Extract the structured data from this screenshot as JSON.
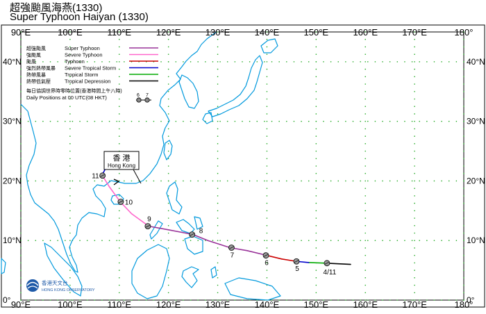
{
  "title": {
    "zh": "超強颱風海燕(1330)",
    "en": "Super Typhoon Haiyan  (1330)"
  },
  "axes": {
    "lon_labels": [
      "90°E",
      "100°E",
      "110°E",
      "120°E",
      "130°E",
      "140°E",
      "150°E",
      "160°E",
      "170°E",
      "180°"
    ],
    "lat_labels": [
      "0°",
      "10°N",
      "20°N",
      "30°N",
      "40°N"
    ]
  },
  "legend": {
    "items": [
      {
        "zh": "超強颱風",
        "en": "Super Typhoon",
        "color": "#993399"
      },
      {
        "zh": "強颱風",
        "en": "Severe Typhoon",
        "color": "#ff66cc"
      },
      {
        "zh": "颱風",
        "en": "Typhoon",
        "color": "#cc0000"
      },
      {
        "zh": "強烈熱帶風暴",
        "en": "Severe Tropical Storm",
        "color": "#0000cc"
      },
      {
        "zh": "熱帶風暴",
        "en": "Tropical Storm",
        "color": "#00aa00"
      },
      {
        "zh": "熱帶低氣壓",
        "en": "Tropical Depression",
        "color": "#000000"
      }
    ],
    "daily_zh": "每日協調世界時零時位置(香港時間上午八時)",
    "daily_en": "Daily Positions at 00 UTC(08 HKT)",
    "sample_labels": [
      "6",
      "7"
    ]
  },
  "hong_kong": {
    "zh": "香 港",
    "en": "Hong Kong"
  },
  "track": [
    {
      "lon": 157.0,
      "lat": 6.0,
      "color": "#000000"
    },
    {
      "lon": 152.0,
      "lat": 6.2,
      "color": "#00aa00"
    },
    {
      "lon": 148.5,
      "lat": 6.3,
      "color": "#0000cc"
    },
    {
      "lon": 146.0,
      "lat": 6.5,
      "color": "#cc0000"
    },
    {
      "lon": 143.0,
      "lat": 6.9,
      "color": "#cc0000"
    },
    {
      "lon": 140.0,
      "lat": 7.5,
      "color": "#993399"
    },
    {
      "lon": 136.0,
      "lat": 8.3,
      "color": "#993399"
    },
    {
      "lon": 132.5,
      "lat": 8.8,
      "color": "#993399"
    },
    {
      "lon": 128.0,
      "lat": 10.0,
      "color": "#993399"
    },
    {
      "lon": 125.0,
      "lat": 11.0,
      "color": "#993399"
    },
    {
      "lon": 120.0,
      "lat": 11.8,
      "color": "#993399"
    },
    {
      "lon": 116.0,
      "lat": 12.4,
      "color": "#ff66cc"
    },
    {
      "lon": 112.5,
      "lat": 14.5,
      "color": "#ff66cc"
    },
    {
      "lon": 110.2,
      "lat": 16.5,
      "color": "#ff66cc"
    },
    {
      "lon": 108.0,
      "lat": 19.0,
      "color": "#ff66cc"
    },
    {
      "lon": 106.5,
      "lat": 21.0,
      "color": "#0000cc"
    },
    {
      "lon": 107.5,
      "lat": 22.5,
      "color": "#000000"
    },
    {
      "lon": 109.0,
      "lat": 22.0,
      "color": "#000000"
    }
  ],
  "daily_positions": [
    {
      "label": "4/11",
      "lon": 152.2,
      "lat": 6.2
    },
    {
      "label": "5",
      "lon": 146.0,
      "lat": 6.5
    },
    {
      "label": "6",
      "lon": 139.8,
      "lat": 7.5
    },
    {
      "label": "7",
      "lon": 132.8,
      "lat": 8.8
    },
    {
      "label": "8",
      "lon": 124.8,
      "lat": 11.0
    },
    {
      "label": "9",
      "lon": 115.8,
      "lat": 12.4
    },
    {
      "label": "10",
      "lon": 110.3,
      "lat": 16.5
    },
    {
      "label": "11",
      "lon": 106.6,
      "lat": 20.9
    }
  ],
  "logo": {
    "zh": "香港天文台",
    "en": "HONG KONG OBSERVATORY"
  },
  "colors": {
    "land": "#0099dd",
    "grid": "#22aa22",
    "frame": "#000000"
  }
}
